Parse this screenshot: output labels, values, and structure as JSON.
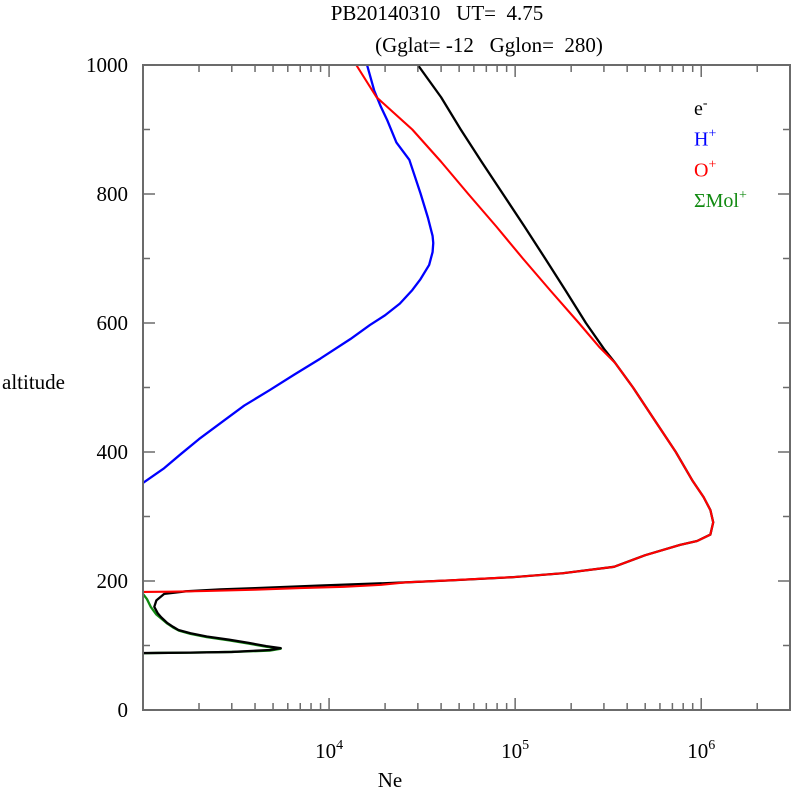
{
  "chart_data": {
    "type": "line",
    "title": "PB20140310   UT=  4.75",
    "subtitle": "(Gglat= -12   Gglon=  280)",
    "xlabel": "Ne",
    "ylabel": "altitude",
    "x_scale": "log",
    "xlim": [
      1000,
      3000000
    ],
    "ylim": [
      0,
      1000
    ],
    "grid": false,
    "legend_position": "top-right-inside",
    "frame_color": "#6b6b6b",
    "x_ticks": [
      {
        "value": 10000,
        "base": "10",
        "exp": "4"
      },
      {
        "value": 100000,
        "base": "10",
        "exp": "5"
      },
      {
        "value": 1000000,
        "base": "10",
        "exp": "6"
      }
    ],
    "y_ticks": [
      {
        "value": 0,
        "label": "0"
      },
      {
        "value": 200,
        "label": "200"
      },
      {
        "value": 400,
        "label": "400"
      },
      {
        "value": 600,
        "label": "600"
      },
      {
        "value": 800,
        "label": "800"
      },
      {
        "value": 1000,
        "label": "1000"
      }
    ],
    "y_minor_step": 100,
    "series": [
      {
        "name": "SigmaMol+",
        "legend_base": "ΣMol",
        "legend_sup": "+",
        "color": "#118a11",
        "width": 2.3,
        "points_ne_alt": [
          [
            1000,
            180
          ],
          [
            1050,
            172
          ],
          [
            1100,
            160
          ],
          [
            1180,
            148
          ],
          [
            1250,
            142
          ],
          [
            1350,
            134
          ],
          [
            1450,
            128
          ],
          [
            1560,
            123
          ],
          [
            1800,
            118
          ],
          [
            2200,
            113
          ],
          [
            2900,
            108
          ],
          [
            3700,
            103
          ],
          [
            4600,
            98
          ],
          [
            5500,
            95
          ],
          [
            4800,
            92
          ],
          [
            3000,
            90
          ],
          [
            1800,
            89
          ],
          [
            1200,
            88.5
          ],
          [
            1000,
            88
          ]
        ]
      },
      {
        "name": "H+",
        "legend_base": "H",
        "legend_sup": "+",
        "color": "#0000ff",
        "width": 2.3,
        "points_ne_alt": [
          [
            16000,
            1000
          ],
          [
            17500,
            960
          ],
          [
            19000,
            935
          ],
          [
            20500,
            915
          ],
          [
            23000,
            880
          ],
          [
            27000,
            853
          ],
          [
            31000,
            801
          ],
          [
            34000,
            763
          ],
          [
            36000,
            735
          ],
          [
            36300,
            724
          ],
          [
            36000,
            710
          ],
          [
            34500,
            690
          ],
          [
            31000,
            668
          ],
          [
            28000,
            651
          ],
          [
            24000,
            630
          ],
          [
            20000,
            612
          ],
          [
            16600,
            597
          ],
          [
            13000,
            575
          ],
          [
            9000,
            545
          ],
          [
            6500,
            520
          ],
          [
            4800,
            496
          ],
          [
            3500,
            472
          ],
          [
            2700,
            448
          ],
          [
            2000,
            420
          ],
          [
            1600,
            397
          ],
          [
            1300,
            375
          ],
          [
            1000,
            352
          ]
        ]
      },
      {
        "name": "e-",
        "legend_base": "e",
        "legend_sup": "-",
        "color": "#000000",
        "width": 2.3,
        "points_ne_alt": [
          [
            30000,
            1000
          ],
          [
            40000,
            950
          ],
          [
            51000,
            900
          ],
          [
            66000,
            850
          ],
          [
            86000,
            800
          ],
          [
            112000,
            750
          ],
          [
            145000,
            700
          ],
          [
            187000,
            650
          ],
          [
            240000,
            600
          ],
          [
            300000,
            560
          ],
          [
            345000,
            538
          ],
          [
            430000,
            500
          ],
          [
            560000,
            450
          ],
          [
            730000,
            400
          ],
          [
            900000,
            355
          ],
          [
            1030000,
            330
          ],
          [
            1120000,
            310
          ],
          [
            1160000,
            291
          ],
          [
            1120000,
            272
          ],
          [
            950000,
            262
          ],
          [
            770000,
            256
          ],
          [
            500000,
            240
          ],
          [
            340000,
            222
          ],
          [
            180000,
            212
          ],
          [
            98000,
            206
          ],
          [
            45000,
            201
          ],
          [
            22000,
            197
          ],
          [
            9000,
            193
          ],
          [
            4000,
            189
          ],
          [
            2600,
            187
          ],
          [
            1700,
            184
          ],
          [
            1300,
            180
          ],
          [
            1180,
            170
          ],
          [
            1150,
            160
          ],
          [
            1200,
            150
          ],
          [
            1250,
            144
          ],
          [
            1350,
            135
          ],
          [
            1450,
            129
          ],
          [
            1550,
            124
          ],
          [
            1800,
            119
          ],
          [
            2200,
            114
          ],
          [
            2900,
            109
          ],
          [
            3700,
            104
          ],
          [
            4600,
            99
          ],
          [
            5500,
            96
          ],
          [
            4800,
            93
          ],
          [
            3000,
            90
          ],
          [
            1800,
            89
          ],
          [
            1200,
            88.5
          ],
          [
            1000,
            88.3
          ]
        ]
      },
      {
        "name": "O+",
        "legend_base": "O",
        "legend_sup": "+",
        "color": "#ff0000",
        "width": 2.1,
        "points_ne_alt": [
          [
            14000,
            1000
          ],
          [
            18000,
            950
          ],
          [
            28000,
            900
          ],
          [
            40000,
            850
          ],
          [
            56000,
            800
          ],
          [
            79000,
            750
          ],
          [
            110000,
            700
          ],
          [
            155000,
            650
          ],
          [
            220000,
            600
          ],
          [
            285000,
            562
          ],
          [
            345000,
            538
          ],
          [
            430000,
            500
          ],
          [
            560000,
            450
          ],
          [
            730000,
            400
          ],
          [
            900000,
            355
          ],
          [
            1030000,
            330
          ],
          [
            1120000,
            310
          ],
          [
            1160000,
            291
          ],
          [
            1120000,
            272
          ],
          [
            950000,
            262
          ],
          [
            770000,
            256
          ],
          [
            500000,
            240
          ],
          [
            340000,
            222
          ],
          [
            180000,
            212
          ],
          [
            98000,
            206
          ],
          [
            45000,
            201
          ],
          [
            26000,
            198
          ],
          [
            19000,
            194
          ],
          [
            12000,
            191
          ],
          [
            7000,
            189
          ],
          [
            4000,
            186.5
          ],
          [
            2200,
            184.5
          ],
          [
            1400,
            183.5
          ],
          [
            1000,
            183
          ]
        ]
      }
    ],
    "legend_order": [
      "e-",
      "H+",
      "O+",
      "SigmaMol+"
    ]
  }
}
